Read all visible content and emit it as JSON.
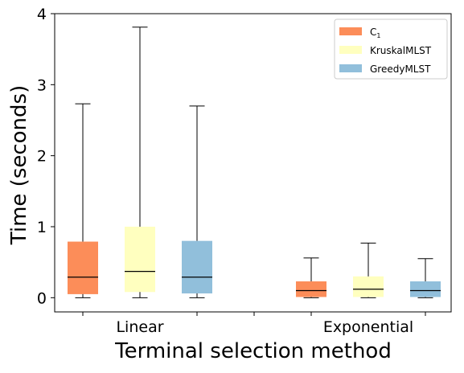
{
  "chart_data": {
    "type": "box",
    "title": "",
    "xlabel": "Terminal selection method",
    "ylabel": "Time (seconds)",
    "ylim": [
      -0.2,
      4.0
    ],
    "yticks": [
      0,
      1,
      2,
      3,
      4
    ],
    "grid": false,
    "legend_position": "top-right",
    "categories": [
      "Linear",
      "Exponential"
    ],
    "series": [
      {
        "name": "C1",
        "name_base": "C",
        "name_subscript": "1",
        "color": "#fc8d59",
        "boxes": [
          {
            "category": "Linear",
            "whisker_low": 0.0,
            "q1": 0.05,
            "median": 0.29,
            "q3": 0.79,
            "whisker_high": 2.73
          },
          {
            "category": "Exponential",
            "whisker_low": 0.0,
            "q1": 0.01,
            "median": 0.1,
            "q3": 0.23,
            "whisker_high": 0.56
          }
        ]
      },
      {
        "name": "KruskalMLST",
        "color": "#ffffbf",
        "boxes": [
          {
            "category": "Linear",
            "whisker_low": 0.0,
            "q1": 0.08,
            "median": 0.37,
            "q3": 1.0,
            "whisker_high": 3.81
          },
          {
            "category": "Exponential",
            "whisker_low": 0.0,
            "q1": 0.01,
            "median": 0.12,
            "q3": 0.3,
            "whisker_high": 0.77
          }
        ]
      },
      {
        "name": "GreedyMLST",
        "color": "#91bfdb",
        "boxes": [
          {
            "category": "Linear",
            "whisker_low": 0.0,
            "q1": 0.06,
            "median": 0.29,
            "q3": 0.8,
            "whisker_high": 2.7
          },
          {
            "category": "Exponential",
            "whisker_low": 0.0,
            "q1": 0.01,
            "median": 0.1,
            "q3": 0.23,
            "whisker_high": 0.55
          }
        ]
      }
    ]
  }
}
